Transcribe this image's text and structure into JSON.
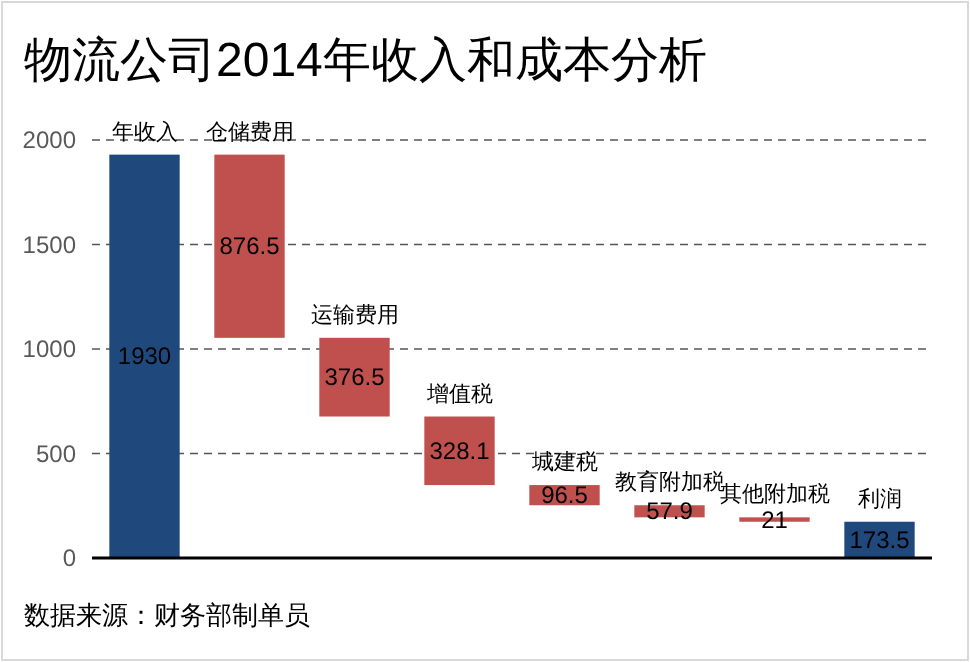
{
  "chart_data": {
    "type": "bar",
    "title": "物流公司2014年收入和成本分析",
    "categories": [
      "年收入",
      "仓储费用",
      "运输费用",
      "增值税",
      "城建税",
      "教育附加税",
      "其他附加税",
      "利润"
    ],
    "values": [
      1930,
      876.5,
      376.5,
      328.1,
      96.5,
      57.9,
      21,
      173.5
    ],
    "base": [
      0,
      1053.5,
      677,
      348.9,
      252.4,
      194.5,
      173.5,
      0
    ],
    "colors": [
      "#1f497d",
      "#c0504d",
      "#c0504d",
      "#c0504d",
      "#c0504d",
      "#c0504d",
      "#c0504d",
      "#1f497d"
    ],
    "data_labels": true,
    "ylim": [
      0,
      2000
    ],
    "yticks": [
      0,
      500,
      1000,
      1500,
      2000
    ],
    "grid": "y",
    "annotations": [
      "数据来源：财务部制单员"
    ]
  }
}
